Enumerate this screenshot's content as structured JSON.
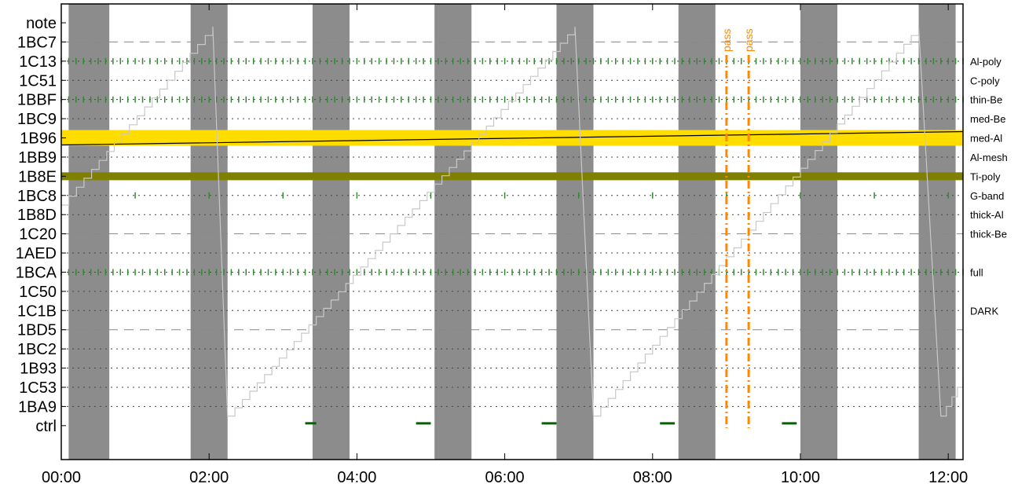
{
  "chart_data": {
    "type": "timeline",
    "x_tick_labels": [
      "00:00",
      "02:00",
      "04:00",
      "06:00",
      "08:00",
      "10:00",
      "12:00"
    ],
    "x_range_hours": [
      0,
      12.2
    ],
    "rows": [
      {
        "code": "note",
        "label": "",
        "style": "none"
      },
      {
        "code": "1BC7",
        "label": "",
        "style": "dashed"
      },
      {
        "code": "1C13",
        "label": "Al-poly",
        "style": "ticks"
      },
      {
        "code": "1C51",
        "label": "C-poly",
        "style": "dotted"
      },
      {
        "code": "1BBF",
        "label": "thin-Be",
        "style": "ticks"
      },
      {
        "code": "1BC9",
        "label": "med-Be",
        "style": "dotted"
      },
      {
        "code": "1B96",
        "label": "med-Al",
        "style": "band"
      },
      {
        "code": "1BB9",
        "label": "Al-mesh",
        "style": "dotted"
      },
      {
        "code": "1B8E",
        "label": "Ti-poly",
        "style": "band"
      },
      {
        "code": "1BC8",
        "label": "G-band",
        "style": "sparse-ticks"
      },
      {
        "code": "1B8D",
        "label": "thick-Al",
        "style": "dotted"
      },
      {
        "code": "1C20",
        "label": "thick-Be",
        "style": "dashed"
      },
      {
        "code": "1AED",
        "label": "",
        "style": "dotted"
      },
      {
        "code": "1BCA",
        "label": "full",
        "style": "ticks"
      },
      {
        "code": "1C50",
        "label": "",
        "style": "dotted"
      },
      {
        "code": "1C1B",
        "label": "DARK",
        "style": "dotted"
      },
      {
        "code": "1BD5",
        "label": "",
        "style": "dashed"
      },
      {
        "code": "1BC2",
        "label": "",
        "style": "dotted"
      },
      {
        "code": "1B93",
        "label": "",
        "style": "dotted"
      },
      {
        "code": "1C53",
        "label": "",
        "style": "dotted"
      },
      {
        "code": "1BA9",
        "label": "",
        "style": "dotted"
      },
      {
        "code": "ctrl",
        "label": "",
        "style": "ctrl"
      }
    ],
    "shaded_intervals_hours": [
      [
        0.1,
        0.65
      ],
      [
        1.75,
        2.25
      ],
      [
        3.4,
        3.9
      ],
      [
        5.05,
        5.55
      ],
      [
        6.7,
        7.2
      ],
      [
        8.35,
        8.85
      ],
      [
        10.0,
        10.5
      ],
      [
        11.6,
        12.1
      ]
    ],
    "bands": [
      {
        "row": "1B96",
        "color": "#ffdd00"
      },
      {
        "row": "1B8E",
        "color": "#7f7f00"
      }
    ],
    "band_trend_line": {
      "row": "1B96",
      "start_offset": -0.45,
      "end_offset": 0.4,
      "color": "#000000"
    },
    "ramp_line": {
      "color": "#c8c8c8",
      "cycles": [
        {
          "start_hour": 0.0,
          "start_row": 9.5,
          "peak_hour": 2.05,
          "reset_hour": 2.25
        },
        {
          "start_hour": 2.25,
          "start_row": 20.5,
          "peak_hour": 6.95,
          "reset_hour": 7.2
        },
        {
          "start_hour": 7.2,
          "start_row": 20.5,
          "peak_hour": 11.6,
          "reset_hour": 11.9
        },
        {
          "start_hour": 11.9,
          "start_row": 20.5,
          "peak_hour": 12.2,
          "end_row": 18.5
        }
      ],
      "peak_row": 0.2
    },
    "tick_rows": [
      "1C13",
      "1BBF",
      "1BCA"
    ],
    "tick_spacing_hours": 0.1,
    "sparse_tick_row": "1BC8",
    "sparse_tick_hours": [
      1.0,
      2.0,
      3.0,
      4.0,
      5.0,
      6.0,
      7.0,
      8.0,
      9.0,
      10.0,
      11.0,
      12.0
    ],
    "ctrl_segments_hours": [
      [
        3.3,
        3.45
      ],
      [
        4.8,
        5.0
      ],
      [
        6.5,
        6.7
      ],
      [
        8.1,
        8.3
      ],
      [
        9.75,
        9.95
      ]
    ],
    "ctrl_color": "#006400",
    "notes": [
      {
        "text": "pass",
        "hour": 9.0,
        "color": "#ff8800"
      },
      {
        "text": "pass",
        "hour": 9.3,
        "color": "#ff8800"
      }
    ],
    "tick_color": "#2e8b2e"
  }
}
